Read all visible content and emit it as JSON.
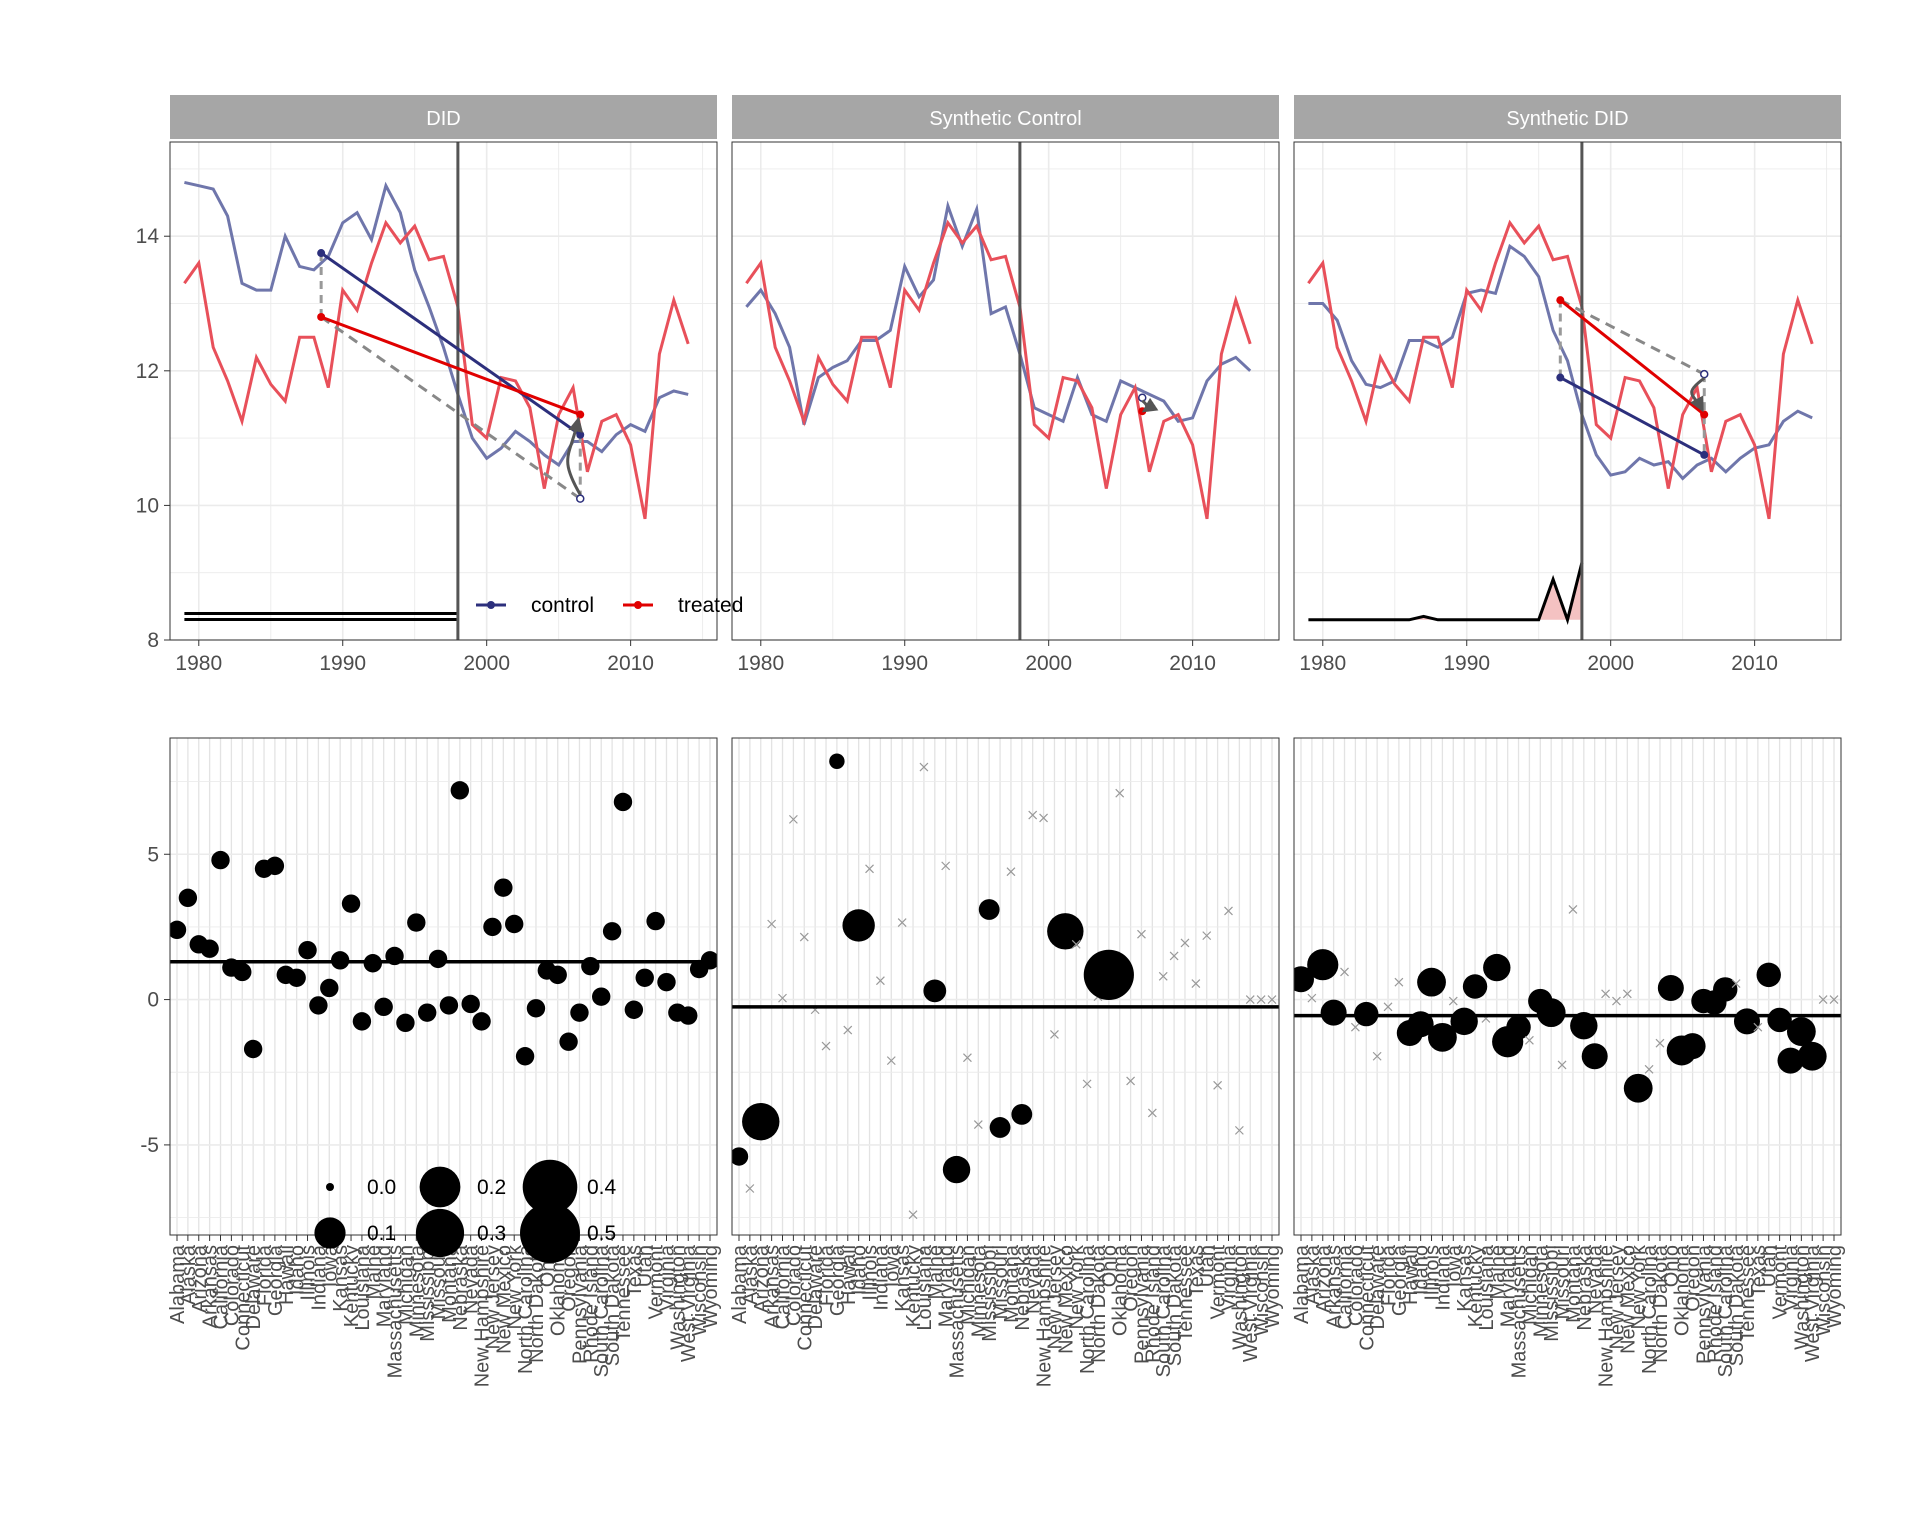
{
  "chart_data": {
    "type": "faceted",
    "facets": [
      "DID",
      "Synthetic Control",
      "Synthetic DID"
    ],
    "legend": {
      "placement": "bottom-left of DID panel",
      "entries": [
        "control",
        "treated"
      ]
    },
    "size_legend": {
      "placement": "bottom-left of lower DID panel",
      "entries": [
        "0.0",
        "0.2",
        "0.4",
        "0.1",
        "0.3",
        "0.5"
      ]
    },
    "colors": {
      "control": "#2c2f7c",
      "control_line": "#6f76ab",
      "treated": "#e00000",
      "treated_line": "#e8505a",
      "strip": "#a6a6a6",
      "ribbon": "#f4c2c2"
    },
    "top": {
      "x_ticks": [
        "1980",
        "1990",
        "2000",
        "2010"
      ],
      "y_ticks": [
        "8",
        "10",
        "12",
        "14"
      ],
      "xlim": [
        1978,
        2016
      ],
      "ylim": [
        8,
        15.4
      ],
      "treatment_year": 1998,
      "years": [
        1979,
        1980,
        1981,
        1982,
        1983,
        1984,
        1985,
        1986,
        1987,
        1988,
        1989,
        1990,
        1991,
        1992,
        1993,
        1994,
        1995,
        1996,
        1997,
        1998,
        1999,
        2000,
        2001,
        2002,
        2003,
        2004,
        2005,
        2006,
        2007,
        2008,
        2009,
        2010,
        2011,
        2012,
        2013,
        2014
      ],
      "treated": [
        13.3,
        13.6,
        12.35,
        11.85,
        11.25,
        12.2,
        11.8,
        11.55,
        12.5,
        12.5,
        11.75,
        13.2,
        12.9,
        13.6,
        14.2,
        13.9,
        14.15,
        13.65,
        13.7,
        12.95,
        11.2,
        11.0,
        11.9,
        11.85,
        11.45,
        10.25,
        11.35,
        11.75,
        10.5,
        11.25,
        11.35,
        10.9,
        9.8,
        12.25,
        13.05,
        12.4
      ],
      "panels": [
        {
          "name": "DID",
          "control": [
            14.8,
            14.75,
            14.7,
            14.3,
            13.3,
            13.2,
            13.2,
            14.0,
            13.55,
            13.5,
            13.7,
            14.2,
            14.35,
            13.95,
            14.75,
            14.35,
            13.5,
            12.95,
            12.35,
            11.65,
            11.0,
            10.7,
            10.85,
            11.1,
            10.95,
            10.75,
            10.6,
            10.95,
            10.95,
            10.8,
            11.05,
            11.2,
            11.1,
            11.6,
            11.7,
            11.65
          ],
          "arrows": {
            "control_pre": [
              1988.5,
              13.75
            ],
            "control_post": [
              2006.5,
              11.05
            ],
            "treated_pre": [
              1988.5,
              12.8
            ],
            "treated_post": [
              2006.5,
              11.35
            ],
            "counterfactual": [
              2006.5,
              10.1
            ]
          },
          "weights": {
            "type": "flat",
            "level": 8.35
          }
        },
        {
          "name": "Synthetic Control",
          "control": [
            12.95,
            13.2,
            12.85,
            12.35,
            11.2,
            11.9,
            12.05,
            12.15,
            12.45,
            12.45,
            12.6,
            13.55,
            13.1,
            13.35,
            14.45,
            13.85,
            14.4,
            12.85,
            12.95,
            12.25,
            11.45,
            11.35,
            11.25,
            11.9,
            11.35,
            11.25,
            11.85,
            11.75,
            11.65,
            11.55,
            11.25,
            11.3,
            11.85,
            12.1,
            12.2,
            12.0
          ],
          "arrows": {
            "treated_post": [
              2006.5,
              11.4
            ],
            "counterfactual": [
              2006.5,
              11.6
            ]
          },
          "weights": {
            "type": "none"
          }
        },
        {
          "name": "Synthetic DID",
          "control": [
            13.0,
            13.0,
            12.75,
            12.15,
            11.8,
            11.75,
            11.85,
            12.45,
            12.45,
            12.35,
            12.5,
            13.15,
            13.2,
            13.15,
            13.85,
            13.7,
            13.4,
            12.6,
            12.15,
            11.35,
            10.75,
            10.45,
            10.5,
            10.7,
            10.6,
            10.65,
            10.4,
            10.6,
            10.7,
            10.5,
            10.7,
            10.85,
            10.9,
            11.25,
            11.4,
            11.3
          ],
          "arrows": {
            "control_pre": [
              1996.5,
              11.9
            ],
            "control_post": [
              2006.5,
              10.75
            ],
            "treated_pre": [
              1996.5,
              13.05
            ],
            "treated_post": [
              2006.5,
              11.35
            ],
            "counterfactual": [
              2006.5,
              11.95
            ]
          },
          "weights": {
            "type": "peaked",
            "years": [
              1979,
              1986,
              1987,
              1988,
              1995,
              1996,
              1997,
              1998
            ],
            "values": [
              8.3,
              8.3,
              8.35,
              8.3,
              8.3,
              8.9,
              8.3,
              9.15
            ]
          }
        }
      ]
    },
    "bottom": {
      "y_ticks": [
        "-5",
        "0",
        "5"
      ],
      "ylim": [
        -8.1,
        9.0
      ],
      "states": [
        "Alabama",
        "Alaska",
        "Arizona",
        "Arkansas",
        "California",
        "Colorado",
        "Connecticut",
        "Delaware",
        "Florida",
        "Georgia",
        "Hawaii",
        "Idaho",
        "Illinois",
        "Indiana",
        "Iowa",
        "Kansas",
        "Kentucky",
        "Louisiana",
        "Maine",
        "Maryland",
        "Massachusetts",
        "Michigan",
        "Minnesota",
        "Mississippi",
        "Missouri",
        "Montana",
        "Nebraska",
        "Nevada",
        "New Hampshire",
        "New Jersey",
        "New Mexico",
        "New York",
        "North Carolina",
        "North Dakota",
        "Ohio",
        "Oklahoma",
        "Oregon",
        "Pennsylvania",
        "Rhode Island",
        "South Carolina",
        "South Dakota",
        "Tennessee",
        "Texas",
        "Utah",
        "Vermont",
        "Virginia",
        "Washington",
        "West Virginia",
        "Wisconsin",
        "Wyoming"
      ],
      "panels": [
        {
          "name": "DID",
          "hline": 1.3,
          "estimates": [
            2.4,
            3.5,
            1.9,
            1.75,
            4.8,
            1.1,
            0.95,
            -1.7,
            4.5,
            4.6,
            0.85,
            0.75,
            1.7,
            -0.2,
            0.4,
            1.35,
            3.3,
            -0.75,
            1.25,
            -0.25,
            1.5,
            -0.8,
            2.65,
            -0.45,
            1.4,
            -0.2,
            7.2,
            -0.15,
            -0.75,
            2.5,
            3.85,
            2.6,
            -1.95,
            -0.3,
            1.0,
            0.85,
            -1.45,
            -0.45,
            1.15,
            0.1,
            2.35,
            6.8,
            -0.35,
            0.75,
            2.7,
            0.6,
            -0.45,
            -0.55,
            1.05,
            1.35
          ],
          "weights": [
            0.02,
            0.02,
            0.02,
            0.02,
            0.02,
            0.02,
            0.02,
            0.02,
            0.02,
            0.02,
            0.02,
            0.02,
            0.02,
            0.02,
            0.02,
            0.02,
            0.02,
            0.02,
            0.02,
            0.02,
            0.02,
            0.02,
            0.02,
            0.02,
            0.02,
            0.02,
            0.02,
            0.02,
            0.02,
            0.02,
            0.02,
            0.02,
            0.02,
            0.02,
            0.02,
            0.02,
            0.02,
            0.02,
            0.02,
            0.02,
            0.02,
            0.02,
            0.02,
            0.02,
            0.02,
            0.02,
            0.02,
            0.02,
            0.02,
            0.02
          ]
        },
        {
          "name": "Synthetic Control",
          "hline": -0.25,
          "estimates": [
            -5.4,
            -6.5,
            -4.2,
            2.6,
            0.05,
            6.2,
            2.15,
            -0.35,
            -1.6,
            8.2,
            -1.05,
            2.55,
            4.5,
            0.65,
            -2.1,
            2.65,
            -7.4,
            8.0,
            0.3,
            4.6,
            -5.85,
            -2.0,
            -4.3,
            3.1,
            -4.4,
            4.4,
            -3.95,
            6.35,
            6.25,
            -1.2,
            2.35,
            1.9,
            -2.9,
            0.1,
            0.85,
            7.1,
            -2.8,
            2.25,
            -3.9,
            0.8,
            1.5,
            1.95,
            0.55,
            2.2,
            -2.95,
            3.05,
            -4.5,
            0.0,
            0.0,
            0.0
          ],
          "weights": [
            0.02,
            0.0,
            0.16,
            0.0,
            0.0,
            0.0,
            0.0,
            0.0,
            0.0,
            0.01,
            0.0,
            0.11,
            0.0,
            0.0,
            0.0,
            0.0,
            0.0,
            0.0,
            0.04,
            0.0,
            0.07,
            0.0,
            0.0,
            0.03,
            0.03,
            0.0,
            0.03,
            0.0,
            0.0,
            0.0,
            0.15,
            0.0,
            0.0,
            0.0,
            0.33,
            0.0,
            0.0,
            0.0,
            0.0,
            0.0,
            0.0,
            0.0,
            0.0,
            0.0,
            0.0,
            0.0,
            0.0,
            0.0,
            0.0,
            0.0
          ]
        },
        {
          "name": "Synthetic DID",
          "hline": -0.55,
          "estimates": [
            0.7,
            0.05,
            1.2,
            -0.45,
            0.95,
            -0.95,
            -0.5,
            -1.95,
            -0.25,
            0.6,
            -1.15,
            -0.85,
            0.6,
            -1.3,
            -0.05,
            -0.75,
            0.45,
            -0.65,
            1.1,
            -1.45,
            -0.95,
            -1.4,
            -0.05,
            -0.45,
            -2.25,
            3.1,
            -0.9,
            -1.95,
            0.2,
            -0.05,
            0.2,
            -3.05,
            -2.4,
            -1.5,
            0.4,
            -1.75,
            -1.6,
            -0.05,
            -0.1,
            0.35,
            0.55,
            -0.75,
            -0.95,
            0.85,
            -0.7,
            -2.1,
            -1.1,
            -1.95,
            0.0,
            0.0
          ],
          "weights": [
            0.06,
            0.0,
            0.1,
            0.06,
            0.0,
            0.0,
            0.05,
            0.0,
            0.0,
            0.0,
            0.06,
            0.06,
            0.08,
            0.08,
            0.0,
            0.07,
            0.05,
            0.0,
            0.07,
            0.1,
            0.05,
            0.0,
            0.05,
            0.08,
            0.0,
            0.0,
            0.07,
            0.06,
            0.0,
            0.0,
            0.0,
            0.08,
            0.0,
            0.0,
            0.06,
            0.09,
            0.06,
            0.05,
            0.05,
            0.05,
            0.0,
            0.06,
            0.0,
            0.05,
            0.05,
            0.06,
            0.08,
            0.08,
            0.0,
            0.0
          ]
        }
      ]
    }
  }
}
